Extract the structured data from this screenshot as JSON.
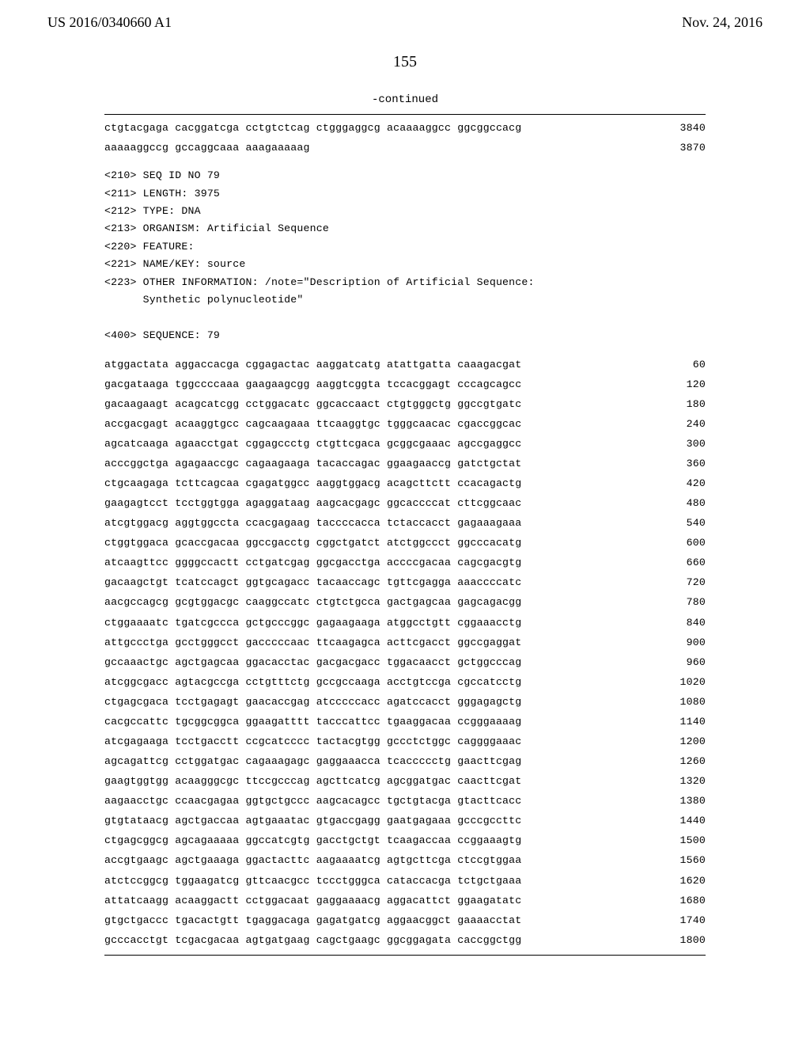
{
  "header": {
    "left": "US 2016/0340660 A1",
    "right": "Nov. 24, 2016"
  },
  "page_number": "155",
  "continued_label": "-continued",
  "top_rows": [
    {
      "seq": "ctgtacgaga cacggatcga cctgtctcag ctgggaggcg acaaaaggcc ggcggccacg",
      "num": "3840"
    },
    {
      "seq": "aaaaaggccg gccaggcaaa aaagaaaaag",
      "num": "3870"
    }
  ],
  "meta": [
    "<210> SEQ ID NO 79",
    "<211> LENGTH: 3975",
    "<212> TYPE: DNA",
    "<213> ORGANISM: Artificial Sequence",
    "<220> FEATURE:",
    "<221> NAME/KEY: source",
    "<223> OTHER INFORMATION: /note=\"Description of Artificial Sequence:",
    "      Synthetic polynucleotide\"",
    "",
    "<400> SEQUENCE: 79"
  ],
  "main_rows": [
    {
      "seq": "atggactata aggaccacga cggagactac aaggatcatg atattgatta caaagacgat",
      "num": "60"
    },
    {
      "seq": "gacgataaga tggccccaaa gaagaagcgg aaggtcggta tccacggagt cccagcagcc",
      "num": "120"
    },
    {
      "seq": "gacaagaagt acagcatcgg cctggacatc ggcaccaact ctgtgggctg ggccgtgatc",
      "num": "180"
    },
    {
      "seq": "accgacgagt acaaggtgcc cagcaagaaa ttcaaggtgc tgggcaacac cgaccggcac",
      "num": "240"
    },
    {
      "seq": "agcatcaaga agaacctgat cggagccctg ctgttcgaca gcggcgaaac agccgaggcc",
      "num": "300"
    },
    {
      "seq": "acccggctga agagaaccgc cagaagaaga tacaccagac ggaagaaccg gatctgctat",
      "num": "360"
    },
    {
      "seq": "ctgcaagaga tcttcagcaa cgagatggcc aaggtggacg acagcttctt ccacagactg",
      "num": "420"
    },
    {
      "seq": "gaagagtcct tcctggtgga agaggataag aagcacgagc ggcaccccat cttcggcaac",
      "num": "480"
    },
    {
      "seq": "atcgtggacg aggtggccta ccacgagaag taccccacca tctaccacct gagaaagaaa",
      "num": "540"
    },
    {
      "seq": "ctggtggaca gcaccgacaa ggccgacctg cggctgatct atctggccct ggcccacatg",
      "num": "600"
    },
    {
      "seq": "atcaagttcc ggggccactt cctgatcgag ggcgacctga accccgacaa cagcgacgtg",
      "num": "660"
    },
    {
      "seq": "gacaagctgt tcatccagct ggtgcagacc tacaaccagc tgttcgagga aaaccccatc",
      "num": "720"
    },
    {
      "seq": "aacgccagcg gcgtggacgc caaggccatc ctgtctgcca gactgagcaa gagcagacgg",
      "num": "780"
    },
    {
      "seq": "ctggaaaatc tgatcgccca gctgcccggc gagaagaaga atggcctgtt cggaaacctg",
      "num": "840"
    },
    {
      "seq": "attgccctga gcctgggcct gacccccaac ttcaagagca acttcgacct ggccgaggat",
      "num": "900"
    },
    {
      "seq": "gccaaactgc agctgagcaa ggacacctac gacgacgacc tggacaacct gctggcccag",
      "num": "960"
    },
    {
      "seq": "atcggcgacc agtacgccga cctgtttctg gccgccaaga acctgtccga cgccatcctg",
      "num": "1020"
    },
    {
      "seq": "ctgagcgaca tcctgagagt gaacaccgag atcccccacc agatccacct gggagagctg",
      "num": "1080"
    },
    {
      "seq": "cacgccattc tgcggcggca ggaagatttt tacccattcc tgaaggacaa ccgggaaaag",
      "num": "1140"
    },
    {
      "seq": "atcgagaaga tcctgacctt ccgcatcccc tactacgtgg gccctctggc caggggaaac",
      "num": "1200"
    },
    {
      "seq": "agcagattcg cctggatgac cagaaagagc gaggaaacca tcaccccctg gaacttcgag",
      "num": "1260"
    },
    {
      "seq": "gaagtggtgg acaagggcgc ttccgcccag agcttcatcg agcggatgac caacttcgat",
      "num": "1320"
    },
    {
      "seq": "aagaacctgc ccaacgagaa ggtgctgccc aagcacagcc tgctgtacga gtacttcacc",
      "num": "1380"
    },
    {
      "seq": "gtgtataacg agctgaccaa agtgaaatac gtgaccgagg gaatgagaaa gcccgccttc",
      "num": "1440"
    },
    {
      "seq": "ctgagcggcg agcagaaaaa ggccatcgtg gacctgctgt tcaagaccaa ccggaaagtg",
      "num": "1500"
    },
    {
      "seq": "accgtgaagc agctgaaaga ggactacttc aagaaaatcg agtgcttcga ctccgtggaa",
      "num": "1560"
    },
    {
      "seq": "atctccggcg tggaagatcg gttcaacgcc tccctgggca cataccacga tctgctgaaa",
      "num": "1620"
    },
    {
      "seq": "attatcaagg acaaggactt cctggacaat gaggaaaacg aggacattct ggaagatatc",
      "num": "1680"
    },
    {
      "seq": "gtgctgaccc tgacactgtt tgaggacaga gagatgatcg aggaacggct gaaaacctat",
      "num": "1740"
    },
    {
      "seq": "gcccacctgt tcgacgacaa agtgatgaag cagctgaagc ggcggagata caccggctgg",
      "num": "1800"
    }
  ]
}
